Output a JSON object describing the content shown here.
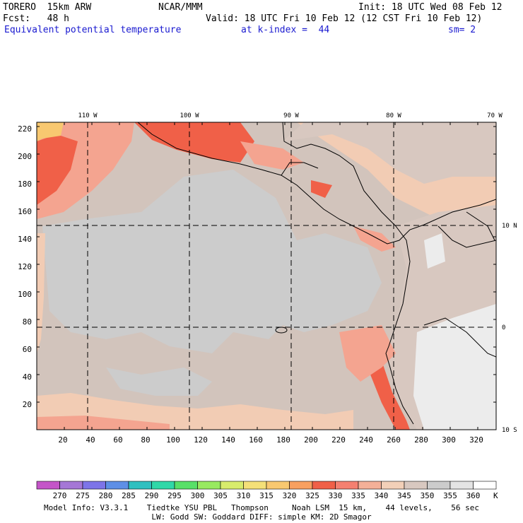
{
  "header": {
    "model": "TORERO  15km ARW",
    "center": "NCAR/MMM",
    "init": "Init: 18 UTC Wed 08 Feb 12",
    "fcst": "Fcst:   48 h",
    "valid": "Valid: 18 UTC Fri 10 Feb 12 (12 CST Fri 10 Feb 12)",
    "field": "Equivalent potential temperature",
    "level": "at k-index =  44",
    "smooth": "sm= 2"
  },
  "axes": {
    "x_ticks": [
      "20",
      "40",
      "60",
      "80",
      "100",
      "120",
      "140",
      "160",
      "180",
      "200",
      "220",
      "240",
      "260",
      "280",
      "300",
      "320"
    ],
    "y_ticks": [
      "20",
      "40",
      "60",
      "80",
      "100",
      "120",
      "140",
      "160",
      "180",
      "200",
      "220"
    ],
    "lon_labels": [
      "110 W",
      "100 W",
      "90 W",
      "80 W",
      "70 W"
    ],
    "lat_labels": [
      "10 N",
      "0",
      "10 S"
    ]
  },
  "colorbar": {
    "unit": "K",
    "labels": [
      "270",
      "275",
      "280",
      "285",
      "290",
      "295",
      "300",
      "305",
      "310",
      "315",
      "320",
      "325",
      "330",
      "335",
      "340",
      "345",
      "350",
      "355",
      "360"
    ],
    "colors": [
      "#c455c8",
      "#a577d6",
      "#7d74e8",
      "#5e8fe6",
      "#30c0c0",
      "#30d8a8",
      "#58e068",
      "#98ea60",
      "#d8ec6c",
      "#f4e078",
      "#f8c870",
      "#f8a060",
      "#f06048",
      "#f48070",
      "#f4b098",
      "#f2d0b8",
      "#d8c8c0",
      "#cccccc",
      "#e4e4e4",
      "#ffffff"
    ]
  },
  "footer": {
    "line1": "Model Info: V3.3.1    Tiedtke YSU PBL   Thompson     Noah LSM  15 km,    44 levels,    56 sec",
    "line2": "LW: Godd SW: Goddard DIFF: simple KM: 2D Smagor"
  },
  "colors": {
    "ocean": "#d2c4bc",
    "land_gray": "#cccccc",
    "warm_light": "#f2ccb4",
    "warm_mid": "#f4a490",
    "warm_hot": "#f06048",
    "andes_white": "#ececec"
  }
}
